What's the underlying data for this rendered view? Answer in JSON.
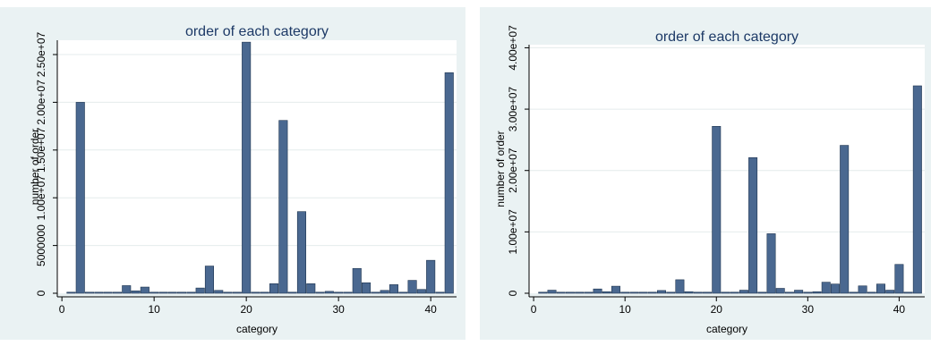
{
  "chart_data": [
    {
      "type": "bar",
      "title": "order of each category",
      "xlabel": "category",
      "ylabel": "number of order",
      "xlim": [
        -0.5,
        42.8
      ],
      "ylim": [
        0,
        26500000
      ],
      "xticks": [
        0,
        10,
        20,
        30,
        40
      ],
      "xtick_labels": [
        "0",
        "10",
        "20",
        "30",
        "40"
      ],
      "yticks": [
        0,
        5000000,
        10000000,
        15000000,
        20000000,
        25000000
      ],
      "ytick_labels": [
        "0",
        "5000000",
        "1.00e+07",
        "1.50e+07",
        "2.00e+07",
        "2.50e+07"
      ],
      "grid": true,
      "bar_color": "#4a6890",
      "x": [
        1,
        2,
        3,
        4,
        5,
        6,
        7,
        8,
        9,
        10,
        11,
        12,
        13,
        14,
        15,
        16,
        17,
        18,
        19,
        20,
        21,
        22,
        23,
        24,
        25,
        26,
        27,
        28,
        29,
        30,
        31,
        32,
        33,
        34,
        35,
        36,
        37,
        38,
        39,
        40,
        41,
        42
      ],
      "values": [
        0,
        20000000,
        0,
        0,
        0,
        0,
        800000,
        250000,
        650000,
        0,
        0,
        0,
        0,
        0,
        550000,
        2850000,
        300000,
        0,
        0,
        26300000,
        0,
        0,
        1000000,
        18100000,
        0,
        8550000,
        1000000,
        0,
        200000,
        0,
        0,
        2600000,
        1100000,
        0,
        300000,
        900000,
        0,
        1350000,
        400000,
        3450000,
        0,
        23100000
      ]
    },
    {
      "type": "bar",
      "title": "order of each category",
      "xlabel": "category",
      "ylabel": "number of order",
      "xlim": [
        -0.5,
        42.8
      ],
      "ylim": [
        0,
        40500000
      ],
      "xticks": [
        0,
        10,
        20,
        30,
        40
      ],
      "xtick_labels": [
        "0",
        "10",
        "20",
        "30",
        "40"
      ],
      "yticks": [
        0,
        10000000,
        20000000,
        30000000,
        40000000
      ],
      "ytick_labels": [
        "0",
        "1.00e+07",
        "2.00e+07",
        "3.00e+07",
        "4.00e+07"
      ],
      "grid": true,
      "bar_color": "#4a6890",
      "x": [
        1,
        2,
        3,
        4,
        5,
        6,
        7,
        8,
        9,
        10,
        11,
        12,
        13,
        14,
        15,
        16,
        17,
        18,
        19,
        20,
        21,
        22,
        23,
        24,
        25,
        26,
        27,
        28,
        29,
        30,
        31,
        32,
        33,
        34,
        35,
        36,
        37,
        38,
        39,
        40,
        41,
        42
      ],
      "values": [
        0,
        500000,
        0,
        0,
        0,
        0,
        700000,
        250000,
        1150000,
        0,
        0,
        0,
        0,
        450000,
        0,
        2200000,
        250000,
        0,
        0,
        27200000,
        0,
        0,
        500000,
        22100000,
        0,
        9700000,
        800000,
        0,
        500000,
        0,
        250000,
        1800000,
        1500000,
        24100000,
        0,
        1200000,
        0,
        1500000,
        500000,
        4700000,
        0,
        33800000
      ]
    }
  ]
}
